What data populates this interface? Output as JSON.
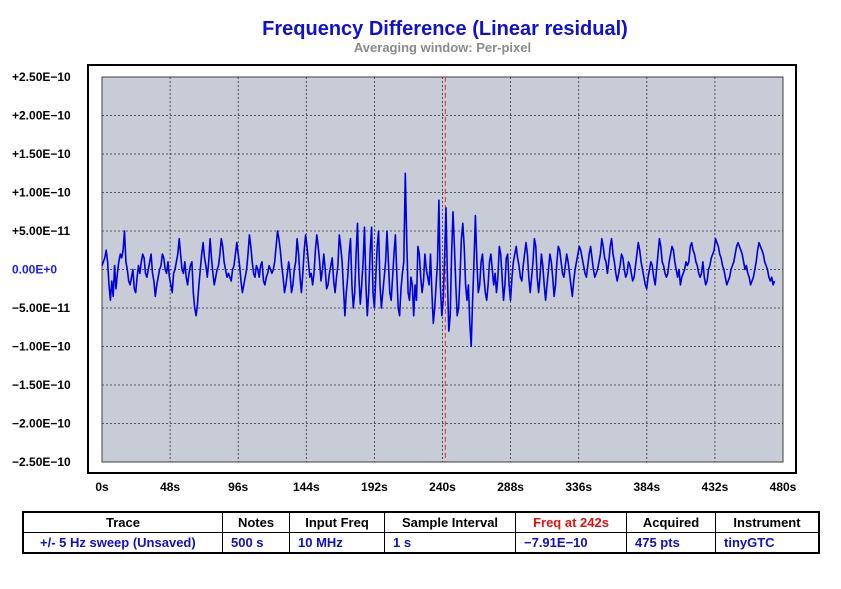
{
  "title": "Frequency Difference (Linear residual)",
  "subtitle": "Averaging window: Per-pixel",
  "colors": {
    "plot_bg": "#c8ccd6",
    "trace": "#0000dd",
    "marker": "#e03030",
    "grid": "#303030",
    "title": "#1010d0"
  },
  "chart_data": {
    "type": "line",
    "xlabel": "",
    "ylabel": "",
    "xlim": [
      0,
      480
    ],
    "ylim": [
      -2.5e-10,
      2.5e-10
    ],
    "x_ticks": [
      "0s",
      "48s",
      "96s",
      "144s",
      "192s",
      "240s",
      "288s",
      "336s",
      "384s",
      "432s",
      "480s"
    ],
    "y_ticks": [
      "+2.50E−10",
      "+2.00E−10",
      "+1.50E−10",
      "+1.00E−10",
      "+5.00E−11",
      "0.00E+0",
      "−5.00E−11",
      "−1.00E−10",
      "−1.50E−10",
      "−2.00E−10",
      "−2.50E−10"
    ],
    "grid": true,
    "marker_x": 242,
    "series": [
      {
        "x_start": 0,
        "x_end": 474,
        "values": [
          5,
          10,
          15,
          25,
          10,
          -20,
          -40,
          -15,
          -35,
          5,
          -25,
          -5,
          10,
          20,
          15,
          25,
          50,
          10,
          0,
          -15,
          -20,
          -10,
          0,
          -25,
          -30,
          -10,
          5,
          -5,
          10,
          20,
          15,
          -5,
          -10,
          0,
          10,
          20,
          -5,
          -15,
          -35,
          -20,
          -10,
          0,
          5,
          20,
          15,
          0,
          -5,
          10,
          -10,
          -20,
          -30,
          -5,
          0,
          10,
          20,
          40,
          20,
          0,
          -5,
          10,
          -10,
          -20,
          -5,
          5,
          10,
          -30,
          -50,
          -60,
          -45,
          -20,
          0,
          20,
          35,
          15,
          5,
          -10,
          10,
          40,
          15,
          -5,
          -20,
          -10,
          0,
          5,
          20,
          40,
          30,
          10,
          0,
          -10,
          -5,
          -10,
          -15,
          0,
          5,
          20,
          35,
          20,
          5,
          -15,
          -30,
          -20,
          -10,
          0,
          20,
          45,
          30,
          10,
          -5,
          -10,
          5,
          0,
          -10,
          5,
          10,
          -15,
          -20,
          -10,
          -5,
          5,
          0,
          -5,
          0,
          10,
          30,
          50,
          40,
          25,
          5,
          -10,
          -30,
          -20,
          -5,
          10,
          -5,
          -30,
          -20,
          0,
          10,
          40,
          20,
          -10,
          -30,
          -5,
          25,
          45,
          30,
          10,
          -10,
          -5,
          -20,
          -5,
          25,
          45,
          30,
          10,
          -15,
          0,
          20,
          0,
          -25,
          -20,
          -5,
          5,
          15,
          -15,
          -30,
          -10,
          5,
          45,
          30,
          10,
          -25,
          -60,
          -30,
          -10,
          20,
          40,
          -20,
          -50,
          -30,
          20,
          60,
          -10,
          -45,
          -20,
          10,
          55,
          -20,
          -60,
          -30,
          25,
          55,
          -30,
          -50,
          -10,
          30,
          50,
          -20,
          -50,
          -30,
          -10,
          10,
          50,
          10,
          -30,
          -40,
          -10,
          20,
          45,
          -5,
          -50,
          -60,
          -25,
          -5,
          10,
          125,
          40,
          -30,
          -40,
          -10,
          -20,
          -60,
          -20,
          -40,
          30,
          20,
          -10,
          -30,
          -15,
          20,
          0,
          -10,
          -20,
          20,
          -30,
          -70,
          -50,
          -20,
          10,
          90,
          -20,
          -60,
          -40,
          15,
          80,
          -10,
          -80,
          -60,
          20,
          75,
          30,
          -20,
          -60,
          -50,
          -10,
          40,
          60,
          30,
          -20,
          -40,
          -20,
          -70,
          -100,
          -40,
          10,
          70,
          10,
          -30,
          -20,
          10,
          20,
          -10,
          -30,
          -40,
          -20,
          10,
          20,
          0,
          -20,
          -5,
          -30,
          -10,
          30,
          20,
          -10,
          -40,
          -20,
          15,
          20,
          -20,
          -40,
          -10,
          10,
          20,
          30,
          15,
          5,
          -10,
          -15,
          5,
          20,
          35,
          20,
          -10,
          -30,
          -10,
          10,
          40,
          30,
          -10,
          -30,
          -10,
          20,
          5,
          -20,
          -40,
          -20,
          0,
          20,
          10,
          -10,
          -35,
          -20,
          10,
          30,
          25,
          10,
          -5,
          -10,
          5,
          20,
          10,
          -5,
          -20,
          -35,
          -15,
          0,
          10,
          20,
          30,
          25,
          15,
          5,
          -5,
          -10,
          5,
          20,
          30,
          15,
          0,
          -10,
          -5,
          0,
          10,
          20,
          40,
          30,
          15,
          10,
          -5,
          10,
          30,
          40,
          20,
          10,
          -5,
          -15,
          -5,
          5,
          20,
          15,
          0,
          -10,
          -5,
          10,
          5,
          -5,
          -15,
          -10,
          5,
          20,
          35,
          25,
          10,
          0,
          -10,
          -20,
          -25,
          -10,
          0,
          10,
          5,
          -10,
          -20,
          0,
          20,
          40,
          30,
          10,
          5,
          -5,
          -10,
          -5,
          10,
          20,
          30,
          25,
          10,
          0,
          -10,
          0,
          -20,
          -10,
          -5,
          0,
          10,
          5,
          10,
          30,
          35,
          25,
          20,
          10,
          5,
          -5,
          -10,
          -5,
          10,
          -10,
          -20,
          -15,
          0,
          5,
          15,
          20,
          25,
          40,
          35,
          30,
          20,
          15,
          5,
          0,
          -10,
          -20,
          -15,
          -10,
          0,
          5,
          10,
          20,
          30,
          35,
          30,
          25,
          20,
          10,
          0,
          5,
          -5,
          -10,
          -20,
          -15,
          -10,
          0,
          10,
          25,
          35,
          30,
          25,
          20,
          10,
          5,
          0,
          -10,
          -15,
          -10,
          -20,
          -15
        ]
      }
    ]
  },
  "table": {
    "headers": [
      "Trace",
      "Notes",
      "Input Freq",
      "Sample Interval",
      "Freq at 242s",
      "Acquired",
      "Instrument"
    ],
    "values": [
      "+/- 5 Hz sweep (Unsaved)",
      "500 s",
      "10 MHz",
      "1 s",
      "−7.91E−10",
      "475 pts",
      "tinyGTC"
    ]
  }
}
